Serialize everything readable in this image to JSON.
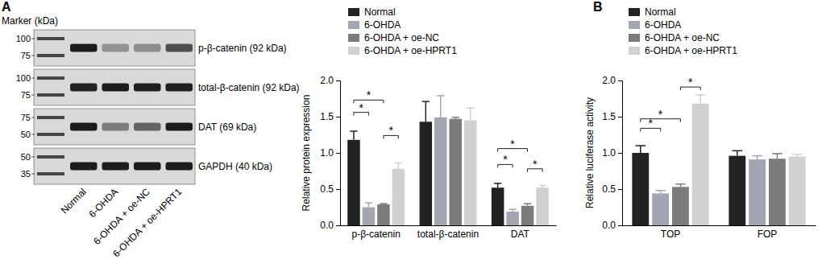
{
  "blot": {
    "panel_label": "A",
    "marker_header": "Marker (kDa)",
    "lanes": [
      "Normal",
      "6-OHDA",
      "6-OHDA + oe-NC",
      "6-OHDA + oe-HPRT1"
    ],
    "rows": [
      {
        "label": "p-β-catenin (92 kDa)",
        "markers": [
          100,
          75
        ]
      },
      {
        "label": "total-β-catenin (92 kDa)",
        "markers": [
          100,
          75
        ]
      },
      {
        "label": "DAT (69 kDa)",
        "markers": [
          75,
          50
        ]
      },
      {
        "label": "GAPDH (40 kDa)",
        "markers": [
          50,
          35
        ]
      }
    ]
  },
  "chart_data": [
    {
      "type": "bar",
      "y_label": "Relative protein expression",
      "categories": [
        "p-β-catenin",
        "total-β-catenin",
        "DAT"
      ],
      "series": [
        {
          "name": "Normal",
          "color": "#222222",
          "values": [
            1.18,
            1.43,
            0.52
          ],
          "errors": [
            0.12,
            0.28,
            0.06
          ]
        },
        {
          "name": "6-OHDA",
          "color": "#a2a6b0",
          "values": [
            0.25,
            1.49,
            0.19
          ],
          "errors": [
            0.06,
            0.3,
            0.03
          ]
        },
        {
          "name": "6-OHDA + oe-NC",
          "color": "#7b7b7b",
          "values": [
            0.29,
            1.47,
            0.27
          ],
          "errors": [
            0.01,
            0.02,
            0.03
          ]
        },
        {
          "name": "6-OHDA + oe-HPRT1",
          "color": "#d0d0d0",
          "values": [
            0.78,
            1.45,
            0.52
          ],
          "errors": [
            0.08,
            0.17,
            0.03
          ]
        }
      ],
      "ylim": [
        0,
        2
      ],
      "yticks": [
        {
          "value": 0,
          "label": "0.0"
        },
        0.5,
        {
          "value": 1,
          "label": "1.0"
        },
        1.5,
        {
          "value": 2,
          "label": "2.0"
        }
      ],
      "legend": "upper left",
      "annotations": [
        {
          "text": "*",
          "category": "p-β-catenin",
          "series": [
            "Normal",
            "6-OHDA + oe-NC"
          ],
          "y": 1.73
        },
        {
          "text": "*",
          "category": "p-β-catenin",
          "series": [
            "Normal",
            "6-OHDA"
          ],
          "y": 1.56
        },
        {
          "text": "*",
          "category": "p-β-catenin",
          "series": [
            "6-OHDA + oe-NC",
            "6-OHDA + oe-HPRT1"
          ],
          "y": 1.24
        },
        {
          "text": "*",
          "category": "DAT",
          "series": [
            "Normal",
            "6-OHDA + oe-NC"
          ],
          "y": 1.06
        },
        {
          "text": "*",
          "category": "DAT",
          "series": [
            "Normal",
            "6-OHDA"
          ],
          "y": 0.84
        },
        {
          "text": "*",
          "category": "DAT",
          "series": [
            "6-OHDA + oe-NC",
            "6-OHDA + oe-HPRT1"
          ],
          "y": 0.78
        }
      ]
    },
    {
      "type": "bar",
      "title": "B",
      "y_label": "Relative luciferase activity",
      "categories": [
        "TOP",
        "FOP"
      ],
      "series": [
        {
          "name": "Normal",
          "color": "#222222",
          "values": [
            1.0,
            0.96
          ],
          "errors": [
            0.1,
            0.07
          ]
        },
        {
          "name": "6-OHDA",
          "color": "#a2a6b0",
          "values": [
            0.44,
            0.91
          ],
          "errors": [
            0.04,
            0.05
          ]
        },
        {
          "name": "6-OHDA + oe-NC",
          "color": "#7b7b7b",
          "values": [
            0.53,
            0.92
          ],
          "errors": [
            0.04,
            0.07
          ]
        },
        {
          "name": "6-OHDA + oe-HPRT1",
          "color": "#d0d0d0",
          "values": [
            1.68,
            0.95
          ],
          "errors": [
            0.12,
            0.03
          ]
        }
      ],
      "ylim": [
        0,
        2
      ],
      "yticks": [
        {
          "value": 0,
          "label": "0.0"
        },
        0.5,
        {
          "value": 1,
          "label": "1.0"
        },
        1.5,
        {
          "value": 2,
          "label": "2.0"
        }
      ],
      "legend": "upper left",
      "annotations": [
        {
          "text": "*",
          "category": "TOP",
          "series": [
            "6-OHDA + oe-NC",
            "6-OHDA + oe-HPRT1"
          ],
          "y": 1.91
        },
        {
          "text": "*",
          "category": "TOP",
          "series": [
            "Normal",
            "6-OHDA + oe-NC"
          ],
          "y": 1.47
        },
        {
          "text": "*",
          "category": "TOP",
          "series": [
            "Normal",
            "6-OHDA"
          ],
          "y": 1.34
        }
      ]
    }
  ]
}
